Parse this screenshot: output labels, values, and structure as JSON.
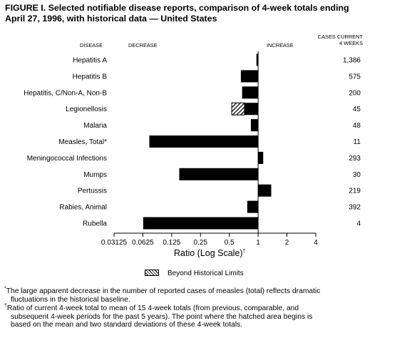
{
  "title_line1": "FIGURE I. Selected notifiable disease reports, comparison of 4-week totals ending",
  "title_line2": "April 27, 1996, with historical data — United States",
  "headers": {
    "disease": "DISEASE",
    "decrease": "DECREASE",
    "increase": "INCREASE",
    "cases_line1": "CASES CURRENT",
    "cases_line2": "4 WEEKS"
  },
  "chart_data": {
    "type": "bar",
    "orientation": "horizontal",
    "xscale": "log2",
    "xlabel": "Ratio (Log Scale)",
    "xlabel_mark": "†",
    "xlim": [
      0.03125,
      4
    ],
    "baseline": 1,
    "xticks": [
      0.03125,
      0.0625,
      0.125,
      0.25,
      0.5,
      1,
      2,
      4
    ],
    "xtick_labels": [
      "0.03125",
      "0.0625",
      "0.125",
      "0.25",
      "0.5",
      "1",
      "2",
      "4"
    ],
    "categories": [
      "Hepatitis A",
      "Hepatitis B",
      "Hepatitis, C/Non-A, Non-B",
      "Legionellosis",
      "Malaria",
      "Measles, Total*",
      "Meningococcal Infections",
      "Mumps",
      "Pertussis",
      "Rabies, Animal",
      "Rubella"
    ],
    "values": [
      0.96,
      0.66,
      0.68,
      0.53,
      0.84,
      0.073,
      1.13,
      0.15,
      1.37,
      0.77,
      0.063
    ],
    "beyond_historical_limit_start": [
      null,
      null,
      null,
      0.72,
      null,
      null,
      null,
      null,
      null,
      null,
      null
    ],
    "cases_current_4_weeks": [
      "1,386",
      "575",
      "200",
      "45",
      "48",
      "11",
      "293",
      "30",
      "219",
      "392",
      "4"
    ],
    "legend": [
      {
        "label": "Beyond Historical Limits",
        "pattern": "hatched"
      }
    ],
    "bar_color": "#000000",
    "grid": false
  },
  "footnotes": {
    "f1_mark": "*",
    "f1_line1": "The large apparent decrease in the number of reported cases of measles (total) reflects dramatic",
    "f1_line2": "fluctuations in the historical baseline.",
    "f2_mark": "†",
    "f2_line1": "Ratio of current 4-week total to mean of 15 4-week totals (from previous, comparable, and",
    "f2_line2": "subsequent 4-week periods for the past 5 years). The point where the hatched area begins is",
    "f2_line3": "based on the mean and two standard deviations of these 4-week totals."
  }
}
